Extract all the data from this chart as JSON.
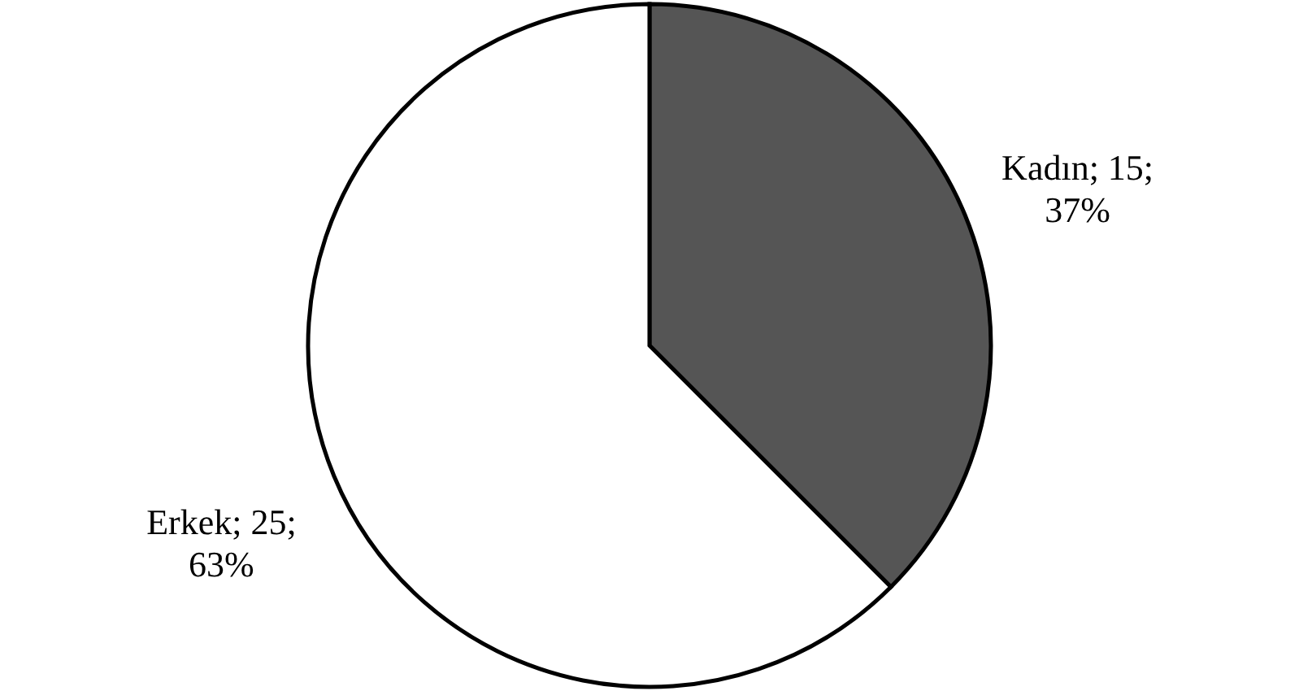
{
  "chart_data": {
    "type": "pie",
    "categories": [
      "Kadın",
      "Erkek"
    ],
    "values": [
      15,
      25
    ],
    "colors": [
      "#555555",
      "#ffffff"
    ],
    "value_labels": [
      "15; 37%",
      "25; 63%"
    ]
  }
}
